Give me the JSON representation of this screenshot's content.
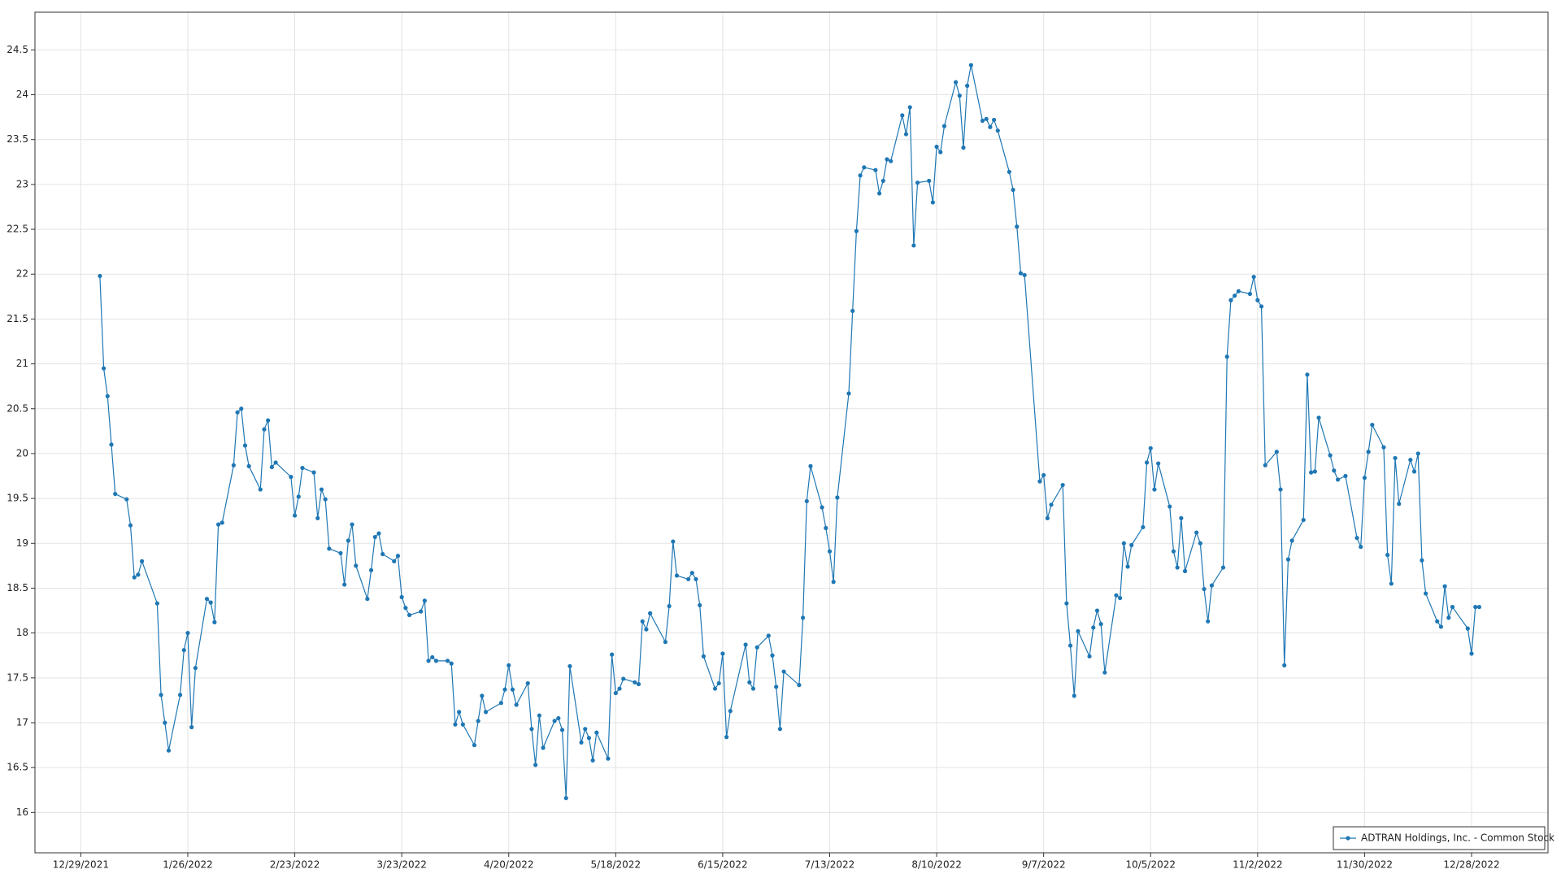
{
  "chart_data": {
    "type": "line",
    "x": [
      "1/3/2022",
      "1/4/2022",
      "1/5/2022",
      "1/6/2022",
      "1/7/2022",
      "1/10/2022",
      "1/11/2022",
      "1/12/2022",
      "1/13/2022",
      "1/14/2022",
      "1/18/2022",
      "1/19/2022",
      "1/20/2022",
      "1/21/2022",
      "1/24/2022",
      "1/25/2022",
      "1/26/2022",
      "1/27/2022",
      "1/28/2022",
      "1/31/2022",
      "2/1/2022",
      "2/2/2022",
      "2/3/2022",
      "2/4/2022",
      "2/7/2022",
      "2/8/2022",
      "2/9/2022",
      "2/10/2022",
      "2/11/2022",
      "2/14/2022",
      "2/15/2022",
      "2/16/2022",
      "2/17/2022",
      "2/18/2022",
      "2/22/2022",
      "2/23/2022",
      "2/24/2022",
      "2/25/2022",
      "2/28/2022",
      "3/1/2022",
      "3/2/2022",
      "3/3/2022",
      "3/4/2022",
      "3/7/2022",
      "3/8/2022",
      "3/9/2022",
      "3/10/2022",
      "3/11/2022",
      "3/14/2022",
      "3/15/2022",
      "3/16/2022",
      "3/17/2022",
      "3/18/2022",
      "3/21/2022",
      "3/22/2022",
      "3/23/2022",
      "3/24/2022",
      "3/25/2022",
      "3/28/2022",
      "3/29/2022",
      "3/30/2022",
      "3/31/2022",
      "4/1/2022",
      "4/4/2022",
      "4/5/2022",
      "4/6/2022",
      "4/7/2022",
      "4/8/2022",
      "4/11/2022",
      "4/12/2022",
      "4/13/2022",
      "4/14/2022",
      "4/18/2022",
      "4/19/2022",
      "4/20/2022",
      "4/21/2022",
      "4/22/2022",
      "4/25/2022",
      "4/26/2022",
      "4/27/2022",
      "4/28/2022",
      "4/29/2022",
      "5/2/2022",
      "5/3/2022",
      "5/4/2022",
      "5/5/2022",
      "5/6/2022",
      "5/9/2022",
      "5/10/2022",
      "5/11/2022",
      "5/12/2022",
      "5/13/2022",
      "5/16/2022",
      "5/17/2022",
      "5/18/2022",
      "5/19/2022",
      "5/20/2022",
      "5/23/2022",
      "5/24/2022",
      "5/25/2022",
      "5/26/2022",
      "5/27/2022",
      "5/31/2022",
      "6/1/2022",
      "6/2/2022",
      "6/3/2022",
      "6/6/2022",
      "6/7/2022",
      "6/8/2022",
      "6/9/2022",
      "6/10/2022",
      "6/13/2022",
      "6/14/2022",
      "6/15/2022",
      "6/16/2022",
      "6/17/2022",
      "6/21/2022",
      "6/22/2022",
      "6/23/2022",
      "6/24/2022",
      "6/27/2022",
      "6/28/2022",
      "6/29/2022",
      "6/30/2022",
      "7/1/2022",
      "7/5/2022",
      "7/6/2022",
      "7/7/2022",
      "7/8/2022",
      "7/11/2022",
      "7/12/2022",
      "7/13/2022",
      "7/14/2022",
      "7/15/2022",
      "7/18/2022",
      "7/19/2022",
      "7/20/2022",
      "7/21/2022",
      "7/22/2022",
      "7/25/2022",
      "7/26/2022",
      "7/27/2022",
      "7/28/2022",
      "7/29/2022",
      "8/1/2022",
      "8/2/2022",
      "8/3/2022",
      "8/4/2022",
      "8/5/2022",
      "8/8/2022",
      "8/9/2022",
      "8/10/2022",
      "8/11/2022",
      "8/12/2022",
      "8/15/2022",
      "8/16/2022",
      "8/17/2022",
      "8/18/2022",
      "8/19/2022",
      "8/22/2022",
      "8/23/2022",
      "8/24/2022",
      "8/25/2022",
      "8/26/2022",
      "8/29/2022",
      "8/30/2022",
      "8/31/2022",
      "9/1/2022",
      "9/2/2022",
      "9/6/2022",
      "9/7/2022",
      "9/8/2022",
      "9/9/2022",
      "9/12/2022",
      "9/13/2022",
      "9/14/2022",
      "9/15/2022",
      "9/16/2022",
      "9/19/2022",
      "9/20/2022",
      "9/21/2022",
      "9/22/2022",
      "9/23/2022",
      "9/26/2022",
      "9/27/2022",
      "9/28/2022",
      "9/29/2022",
      "9/30/2022",
      "10/3/2022",
      "10/4/2022",
      "10/5/2022",
      "10/6/2022",
      "10/7/2022",
      "10/10/2022",
      "10/11/2022",
      "10/12/2022",
      "10/13/2022",
      "10/14/2022",
      "10/17/2022",
      "10/18/2022",
      "10/19/2022",
      "10/20/2022",
      "10/21/2022",
      "10/24/2022",
      "10/25/2022",
      "10/26/2022",
      "10/27/2022",
      "10/28/2022",
      "10/31/2022",
      "11/1/2022",
      "11/2/2022",
      "11/3/2022",
      "11/4/2022",
      "11/7/2022",
      "11/8/2022",
      "11/9/2022",
      "11/10/2022",
      "11/11/2022",
      "11/14/2022",
      "11/15/2022",
      "11/16/2022",
      "11/17/2022",
      "11/18/2022",
      "11/21/2022",
      "11/22/2022",
      "11/23/2022",
      "11/25/2022",
      "11/28/2022",
      "11/29/2022",
      "11/30/2022",
      "12/1/2022",
      "12/2/2022",
      "12/5/2022",
      "12/6/2022",
      "12/7/2022",
      "12/8/2022",
      "12/9/2022",
      "12/12/2022",
      "12/13/2022",
      "12/14/2022",
      "12/15/2022",
      "12/16/2022",
      "12/19/2022",
      "12/20/2022",
      "12/21/2022",
      "12/22/2022",
      "12/23/2022",
      "12/27/2022",
      "12/28/2022",
      "12/29/2022",
      "12/30/2022"
    ],
    "series": [
      {
        "name": "ADTRAN Holdings, Inc. - Common Stock",
        "color": "#1f77b4",
        "values": [
          21.98,
          20.95,
          20.64,
          20.1,
          19.55,
          19.49,
          19.2,
          18.62,
          18.65,
          18.8,
          18.33,
          17.31,
          17.0,
          16.69,
          17.31,
          17.81,
          18.0,
          16.95,
          17.61,
          18.38,
          18.34,
          18.12,
          19.21,
          19.23,
          19.87,
          20.46,
          20.5,
          20.09,
          19.86,
          19.6,
          20.27,
          20.37,
          19.85,
          19.9,
          19.74,
          19.31,
          19.52,
          19.84,
          19.79,
          19.28,
          19.6,
          19.49,
          18.94,
          18.89,
          18.54,
          19.03,
          19.21,
          18.75,
          18.38,
          18.7,
          19.07,
          19.11,
          18.88,
          18.8,
          18.86,
          18.4,
          18.28,
          18.2,
          18.24,
          18.36,
          17.69,
          17.73,
          17.69,
          17.69,
          17.66,
          16.98,
          17.12,
          16.98,
          16.75,
          17.02,
          17.3,
          17.12,
          17.22,
          17.37,
          17.64,
          17.37,
          17.2,
          17.44,
          16.93,
          16.53,
          17.08,
          16.72,
          17.02,
          17.05,
          16.92,
          16.16,
          17.63,
          16.78,
          16.93,
          16.83,
          16.58,
          16.89,
          16.6,
          17.76,
          17.33,
          17.38,
          17.49,
          17.45,
          17.43,
          18.13,
          18.04,
          18.22,
          17.9,
          18.3,
          19.02,
          18.64,
          18.6,
          18.67,
          18.6,
          18.31,
          17.74,
          17.38,
          17.44,
          17.77,
          16.84,
          17.13,
          17.87,
          17.45,
          17.38,
          17.84,
          17.97,
          17.75,
          17.4,
          16.93,
          17.57,
          17.42,
          18.17,
          19.47,
          19.86,
          19.4,
          19.17,
          18.91,
          18.57,
          19.51,
          20.67,
          21.59,
          22.48,
          23.1,
          23.19,
          23.16,
          22.9,
          23.04,
          23.28,
          23.26,
          23.77,
          23.56,
          23.86,
          22.32,
          23.02,
          23.04,
          22.8,
          23.42,
          23.36,
          23.65,
          24.14,
          23.99,
          23.41,
          24.1,
          24.33,
          23.71,
          23.73,
          23.64,
          23.72,
          23.6,
          23.14,
          22.94,
          22.53,
          22.01,
          21.99,
          19.69,
          19.76,
          19.28,
          19.43,
          19.65,
          18.33,
          17.86,
          17.3,
          18.02,
          17.74,
          18.06,
          18.25,
          18.1,
          17.56,
          18.42,
          18.39,
          19.0,
          18.74,
          18.98,
          19.18,
          19.9,
          20.06,
          19.6,
          19.89,
          19.41,
          18.91,
          18.73,
          19.28,
          18.69,
          19.12,
          19.0,
          18.49,
          18.13,
          18.53,
          18.73,
          21.08,
          21.71,
          21.76,
          21.81,
          21.78,
          21.97,
          21.71,
          21.64,
          19.87,
          20.02,
          19.6,
          17.64,
          18.82,
          19.03,
          19.26,
          20.88,
          19.79,
          19.8,
          20.4,
          19.98,
          19.81,
          19.71,
          19.75,
          19.06,
          18.96,
          19.73,
          20.02,
          20.32,
          20.07,
          18.87,
          18.55,
          19.95,
          19.44,
          19.93,
          19.8,
          20.0,
          18.81,
          18.44,
          18.13,
          18.07,
          18.52,
          18.17,
          18.29,
          18.05,
          17.77,
          18.29,
          18.29
        ]
      }
    ],
    "xlim": [
      "12/17/2021",
      "1/17/2023"
    ],
    "xticks": [
      "12/29/2021",
      "1/26/2022",
      "2/23/2022",
      "3/23/2022",
      "4/20/2022",
      "5/18/2022",
      "6/15/2022",
      "7/13/2022",
      "8/10/2022",
      "9/7/2022",
      "10/5/2022",
      "11/2/2022",
      "11/30/2022",
      "12/28/2022"
    ],
    "ylim": [
      15.55,
      24.92
    ],
    "yticks": [
      16,
      16.5,
      17,
      17.5,
      18,
      18.5,
      19,
      19.5,
      20,
      20.5,
      21,
      21.5,
      22,
      22.5,
      23,
      23.5,
      24,
      24.5
    ],
    "grid": true,
    "legend": "lower right"
  }
}
